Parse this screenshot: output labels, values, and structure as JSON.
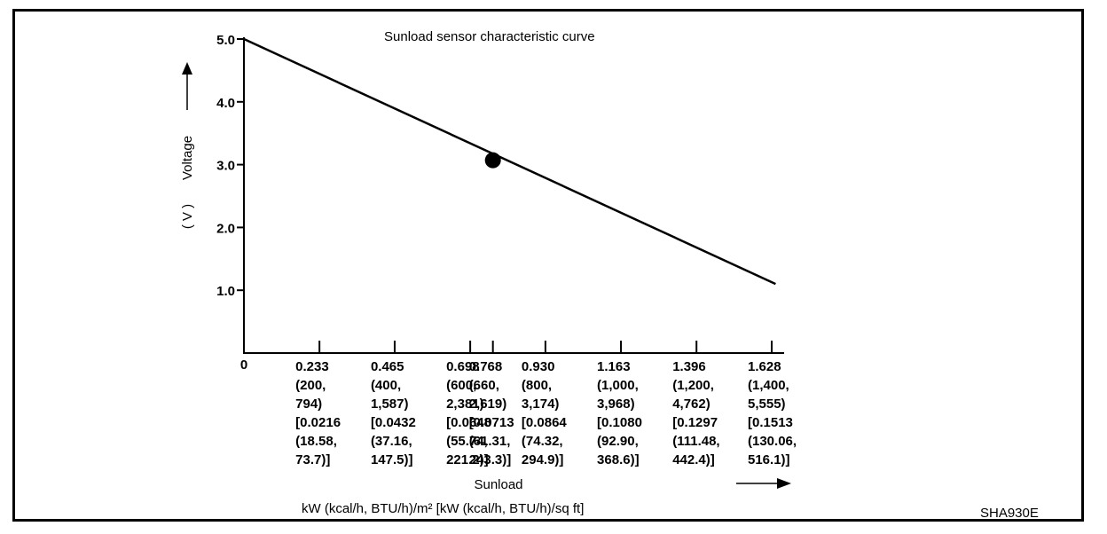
{
  "chart_data": {
    "type": "line",
    "title": "Sunload sensor characteristic curve",
    "xlabel": "Sunload",
    "xunits": "kW (kcal/h, BTU/h)/m²  [kW (kcal/h, BTU/h)/sq ft]",
    "ylabel": "Voltage",
    "ylabel_unit": "( V )",
    "xlim": [
      0,
      1.7
    ],
    "ylim": [
      0,
      5.0
    ],
    "y_ticks": [
      {
        "value": 1.0,
        "label": "1.0"
      },
      {
        "value": 2.0,
        "label": "2.0"
      },
      {
        "value": 3.0,
        "label": "3.0"
      },
      {
        "value": 4.0,
        "label": "4.0"
      },
      {
        "value": 5.0,
        "label": "5.0"
      }
    ],
    "x_tick_marks": [
      0.233,
      0.465,
      0.698,
      0.768,
      0.93,
      1.163,
      1.396,
      1.628
    ],
    "x_ticks": [
      {
        "value": 0,
        "lines": [
          "0"
        ]
      },
      {
        "value": 0.233,
        "lines": [
          "0.233",
          "(200,",
          "794)",
          "[0.0216",
          "(18.58,",
          "73.7)]"
        ]
      },
      {
        "value": 0.465,
        "lines": [
          "0.465",
          "(400,",
          "1,587)",
          "[0.0432",
          "(37.16,",
          "147.5)]"
        ]
      },
      {
        "value": 0.698,
        "lines": [
          "0.698",
          "(600,",
          "2,381)",
          "[0.0648",
          "(55.74,",
          "221.2)]"
        ]
      },
      {
        "value": 0.768,
        "lines": [
          "0.768",
          "(660,",
          "2,619)",
          "[0.0713",
          "(61.31,",
          "243.3)]"
        ]
      },
      {
        "value": 0.93,
        "lines": [
          "0.930",
          "(800,",
          "3,174)",
          "[0.0864",
          "(74.32,",
          "294.9)]"
        ]
      },
      {
        "value": 1.163,
        "lines": [
          "1.163",
          "(1,000,",
          "3,968)",
          "[0.1080",
          "(92.90,",
          "368.6)]"
        ]
      },
      {
        "value": 1.396,
        "lines": [
          "1.396",
          "(1,200,",
          "4,762)",
          "[0.1297",
          "(111.48,",
          "442.4)]"
        ]
      },
      {
        "value": 1.628,
        "lines": [
          "1.628",
          "(1,400,",
          "5,555)",
          "[0.1513",
          "(130.06,",
          "516.1)]"
        ]
      }
    ],
    "series": [
      {
        "x": [
          0,
          1.64
        ],
        "y": [
          5.0,
          1.1
        ]
      }
    ],
    "marker": {
      "x": 0.768,
      "y": 3.07
    },
    "grid": false,
    "figure_code": "SHA930E"
  }
}
